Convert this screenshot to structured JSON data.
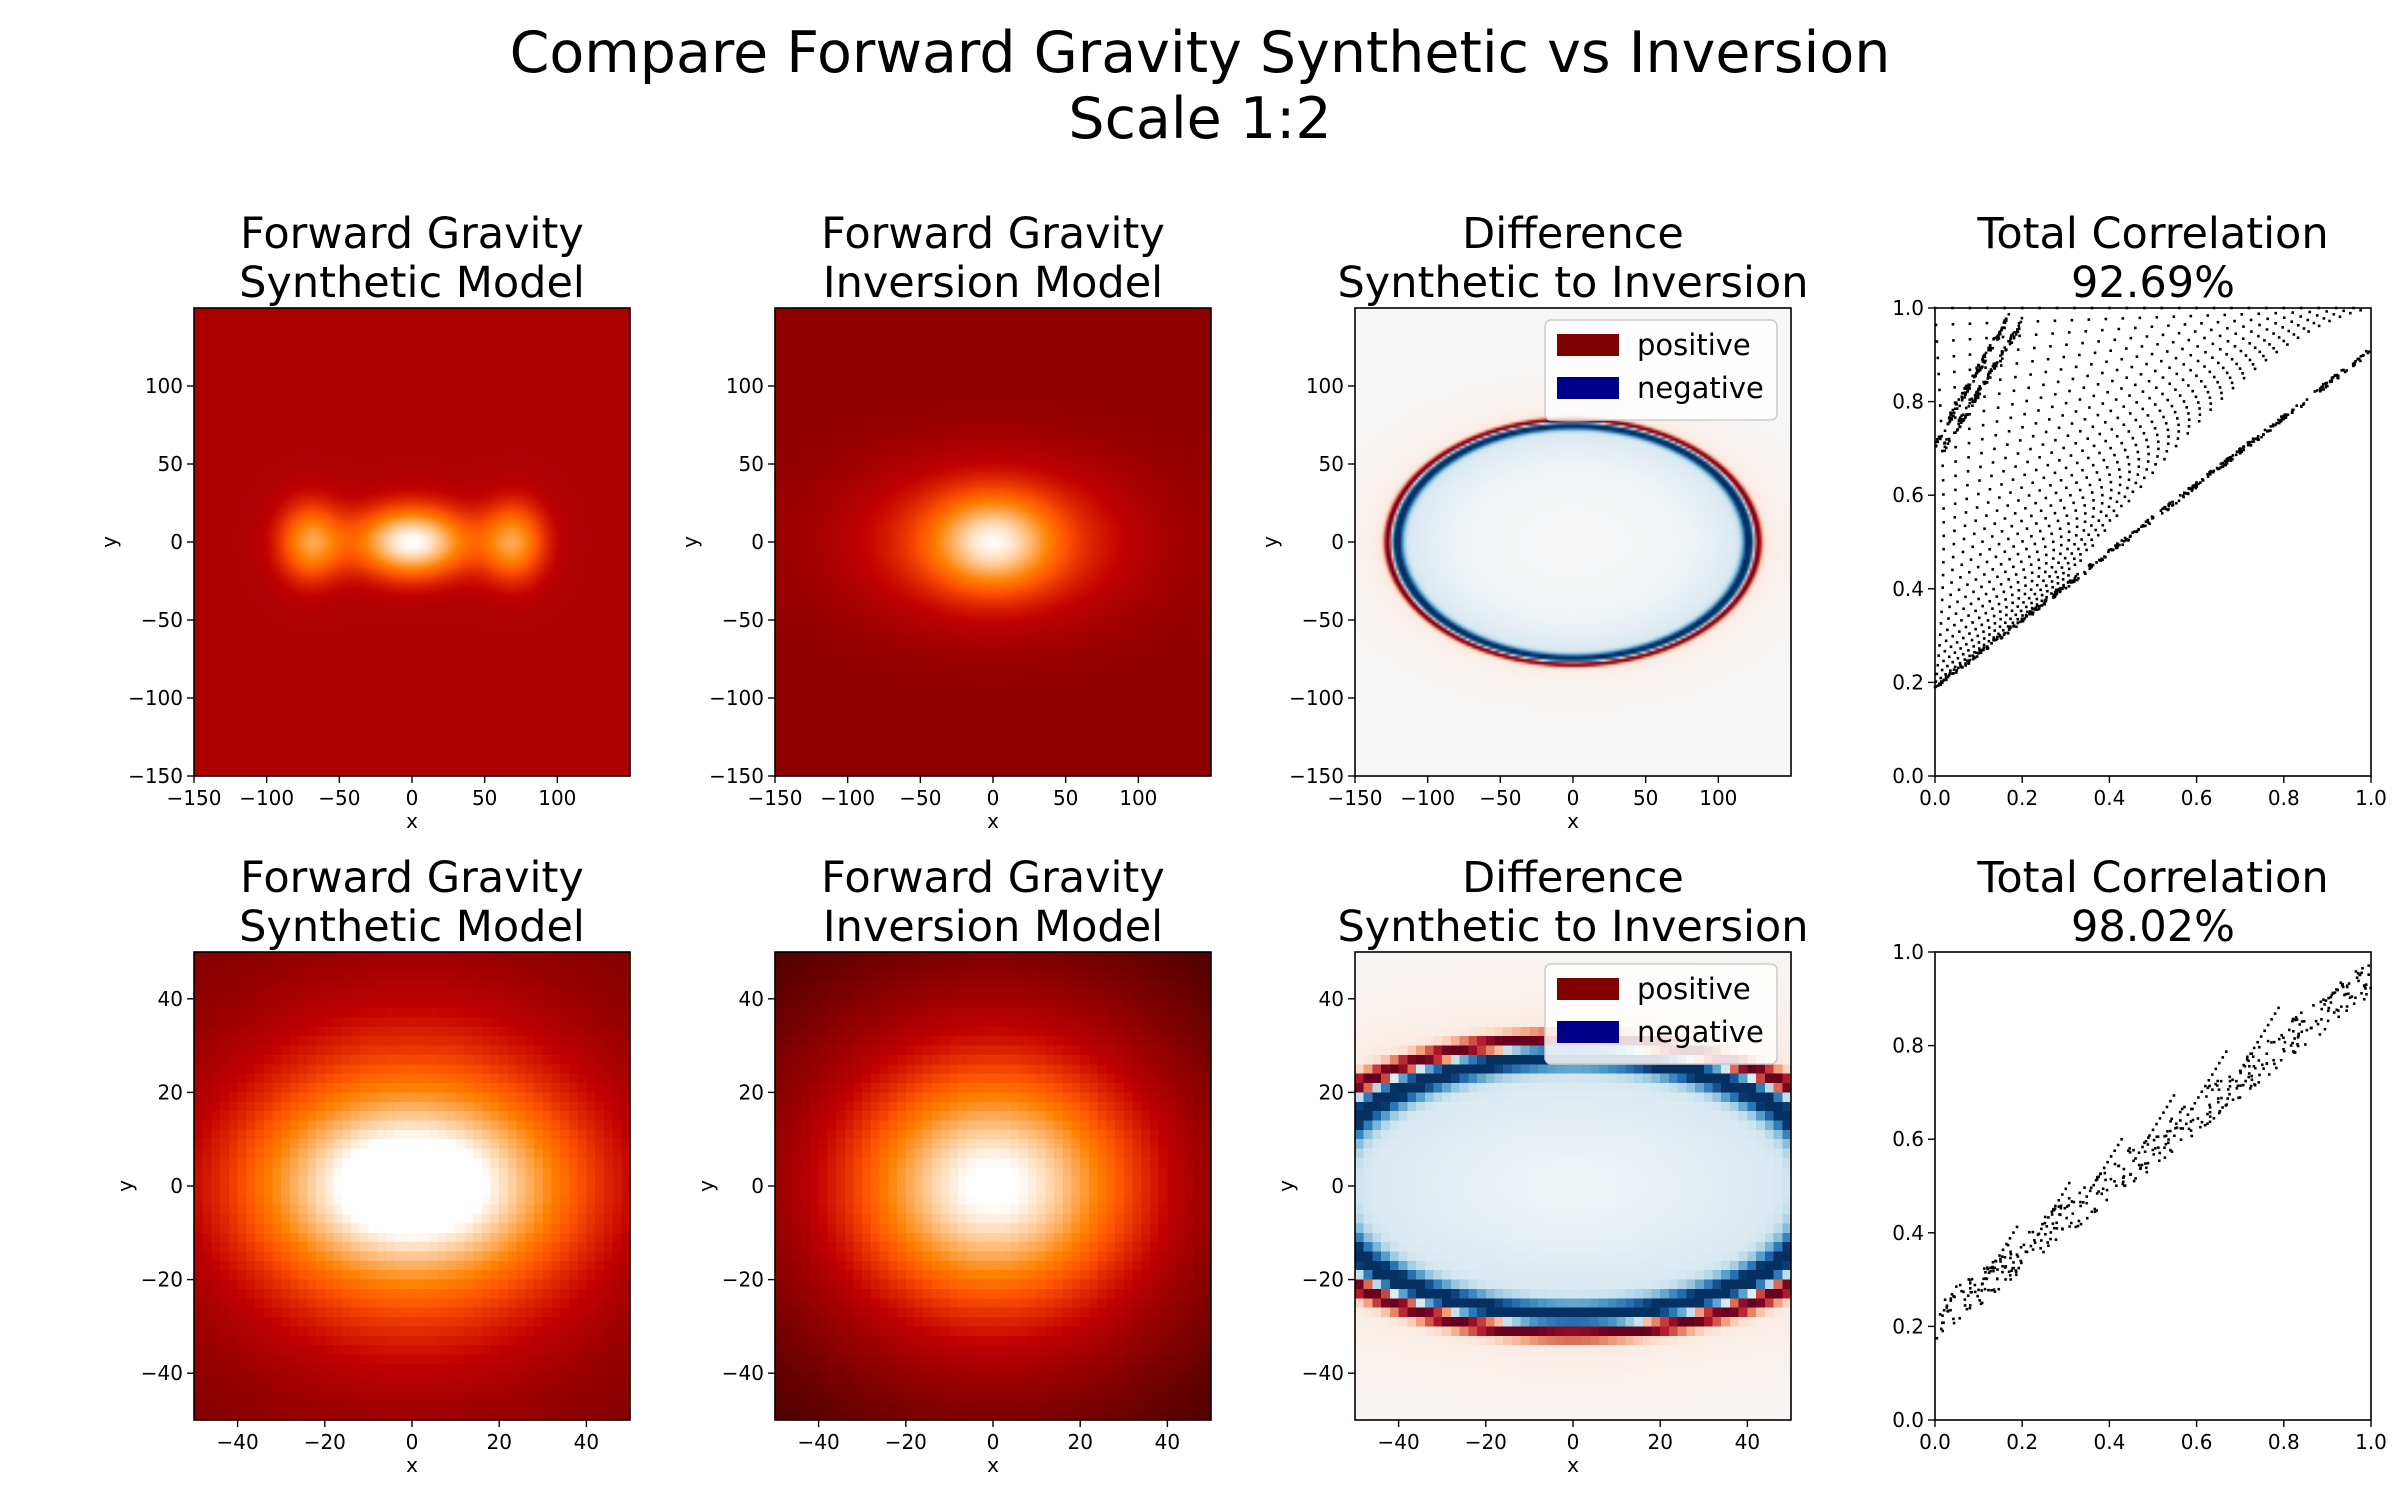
{
  "figure": {
    "title_line1": "Compare Forward Gravity Synthetic vs Inversion",
    "title_line2": "Scale 1:2"
  },
  "chart_data": [
    {
      "type": "heatmap",
      "colormap": "gist_heat",
      "title": [
        "Forward Gravity",
        "Synthetic Model"
      ],
      "xlabel": "x",
      "ylabel": "y",
      "xlim": [
        -150,
        150
      ],
      "ylim": [
        -150,
        150
      ],
      "xticks": [
        -150,
        -100,
        -50,
        0,
        50,
        100
      ],
      "yticks": [
        -150,
        -100,
        -50,
        0,
        50,
        100
      ],
      "background_level": 0.45,
      "blobs": [
        {
          "x": -70,
          "y": 0,
          "sx": 16,
          "sy": 18,
          "a": 0.35
        },
        {
          "x": 0,
          "y": 0,
          "sx": 28,
          "sy": 16,
          "a": 0.55
        },
        {
          "x": 70,
          "y": 0,
          "sx": 16,
          "sy": 18,
          "a": 0.35
        }
      ]
    },
    {
      "type": "heatmap",
      "colormap": "gist_heat",
      "title": [
        "Forward Gravity",
        "Inversion Model"
      ],
      "xlabel": "x",
      "ylabel": "y",
      "xlim": [
        -150,
        150
      ],
      "ylim": [
        -150,
        150
      ],
      "xticks": [
        -150,
        -100,
        -50,
        0,
        50,
        100
      ],
      "yticks": [
        -150,
        -100,
        -50,
        0,
        50,
        100
      ],
      "background_level": 0.37,
      "blobs": [
        {
          "x": 0,
          "y": 0,
          "sx": 70,
          "sy": 38,
          "a": 0.3
        },
        {
          "x": 0,
          "y": 0,
          "sx": 28,
          "sy": 20,
          "a": 0.32
        }
      ]
    },
    {
      "type": "heatmap",
      "colormap": "RdBu_r",
      "title": [
        "Difference",
        "Synthetic to Inversion"
      ],
      "xlabel": "x",
      "ylabel": "y",
      "xlim": [
        -150,
        150
      ],
      "ylim": [
        -150,
        150
      ],
      "xticks": [
        -150,
        -100,
        -50,
        0,
        50,
        100
      ],
      "yticks": [
        -150,
        -100,
        -50,
        0,
        50,
        100
      ],
      "ellipse": {
        "cx": 0,
        "cy": 0,
        "rx": 125,
        "ry": 77
      },
      "legend": [
        {
          "label": "positive",
          "color": "#800000"
        },
        {
          "label": "negative",
          "color": "#00008b"
        }
      ],
      "legend_position": "top-right"
    },
    {
      "type": "scatter",
      "title": [
        "Total Correlation",
        "92.69%"
      ],
      "xlim": [
        0,
        1
      ],
      "ylim": [
        0,
        1
      ],
      "xticks": [
        0.0,
        0.2,
        0.4,
        0.6,
        0.8,
        1.0
      ],
      "yticks": [
        0.0,
        0.2,
        0.4,
        0.6,
        0.8,
        1.0
      ],
      "pattern": "fan",
      "point_color": "#000000"
    },
    {
      "type": "heatmap",
      "colormap": "gist_heat",
      "title": [
        "Forward Gravity",
        "Synthetic Model"
      ],
      "xlabel": "x",
      "ylabel": "y",
      "xlim": [
        -50,
        50
      ],
      "ylim": [
        -50,
        50
      ],
      "xticks": [
        -40,
        -20,
        0,
        20,
        40
      ],
      "yticks": [
        -40,
        -20,
        0,
        20,
        40
      ],
      "background_level": 0.3,
      "blobs": [
        {
          "x": 0,
          "y": 0,
          "sx": 36,
          "sy": 30,
          "a": 0.45
        },
        {
          "x": 0,
          "y": 0,
          "sx": 24,
          "sy": 13,
          "a": 0.38
        }
      ]
    },
    {
      "type": "heatmap",
      "colormap": "gist_heat",
      "title": [
        "Forward Gravity",
        "Inversion Model"
      ],
      "xlabel": "x",
      "ylabel": "y",
      "xlim": [
        -50,
        50
      ],
      "ylim": [
        -50,
        50
      ],
      "xticks": [
        -40,
        -20,
        0,
        20,
        40
      ],
      "yticks": [
        -40,
        -20,
        0,
        20,
        40
      ],
      "background_level": 0.12,
      "blobs": [
        {
          "x": 0,
          "y": 0,
          "sx": 44,
          "sy": 38,
          "a": 0.55
        },
        {
          "x": 0,
          "y": 0,
          "sx": 20,
          "sy": 15,
          "a": 0.35
        }
      ]
    },
    {
      "type": "heatmap",
      "colormap": "RdBu_r",
      "title": [
        "Difference",
        "Synthetic to Inversion"
      ],
      "xlabel": "x",
      "ylabel": "y",
      "xlim": [
        -50,
        50
      ],
      "ylim": [
        -50,
        50
      ],
      "xticks": [
        -40,
        -20,
        0,
        20,
        40
      ],
      "yticks": [
        -40,
        -20,
        0,
        20,
        40
      ],
      "ellipse": {
        "cx": 0,
        "cy": 0,
        "rx": 64,
        "ry": 30
      },
      "legend": [
        {
          "label": "positive",
          "color": "#800000"
        },
        {
          "label": "negative",
          "color": "#00008b"
        }
      ],
      "legend_position": "top-right"
    },
    {
      "type": "scatter",
      "title": [
        "Total Correlation",
        "98.02%"
      ],
      "xlim": [
        0,
        1
      ],
      "ylim": [
        0,
        1
      ],
      "xticks": [
        0.0,
        0.2,
        0.4,
        0.6,
        0.8,
        1.0
      ],
      "yticks": [
        0.0,
        0.2,
        0.4,
        0.6,
        0.8,
        1.0
      ],
      "pattern": "linear",
      "point_color": "#000000"
    }
  ]
}
